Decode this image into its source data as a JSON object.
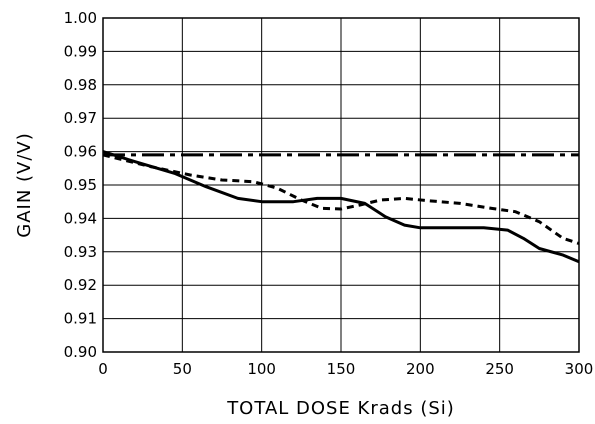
{
  "chart_data": {
    "type": "line",
    "title": "",
    "xlabel": "TOTAL DOSE Krads (Si)",
    "ylabel": "GAIN (V/V)",
    "xlim": [
      0,
      300
    ],
    "ylim": [
      0.9,
      1.0
    ],
    "x_ticks": [
      0,
      50,
      100,
      150,
      200,
      250,
      300
    ],
    "x_tick_labels": [
      "0",
      "50",
      "100",
      "150",
      "200",
      "250",
      "300"
    ],
    "y_ticks": [
      0.9,
      0.91,
      0.92,
      0.93,
      0.94,
      0.95,
      0.96,
      0.97,
      0.98,
      0.99,
      1.0
    ],
    "y_tick_labels": [
      "0.90",
      "0.91",
      "0.92",
      "0.93",
      "0.94",
      "0.95",
      "0.96",
      "0.97",
      "0.98",
      "0.99",
      "1.00"
    ],
    "grid": true,
    "legend": "none",
    "series": [
      {
        "style": "solid",
        "color": "#000000",
        "x": [
          0,
          20,
          45,
          65,
          85,
          100,
          120,
          135,
          150,
          165,
          178,
          190,
          200,
          220,
          240,
          255,
          265,
          275,
          290,
          300
        ],
        "y": [
          0.96,
          0.957,
          0.9535,
          0.9495,
          0.946,
          0.945,
          0.945,
          0.946,
          0.946,
          0.9445,
          0.9405,
          0.938,
          0.9372,
          0.9372,
          0.9372,
          0.9365,
          0.934,
          0.931,
          0.929,
          0.927
        ]
      },
      {
        "style": "dashed",
        "color": "#000000",
        "x": [
          0,
          30,
          55,
          75,
          95,
          110,
          125,
          138,
          150,
          162,
          175,
          190,
          205,
          225,
          245,
          260,
          275,
          290,
          300
        ],
        "y": [
          0.959,
          0.9555,
          0.953,
          0.9515,
          0.951,
          0.949,
          0.9455,
          0.943,
          0.9428,
          0.944,
          0.9455,
          0.946,
          0.9453,
          0.9445,
          0.943,
          0.942,
          0.939,
          0.934,
          0.9325
        ]
      },
      {
        "style": "dash-dot",
        "color": "#000000",
        "x": [
          0,
          300
        ],
        "y": [
          0.959,
          0.959
        ]
      }
    ]
  }
}
